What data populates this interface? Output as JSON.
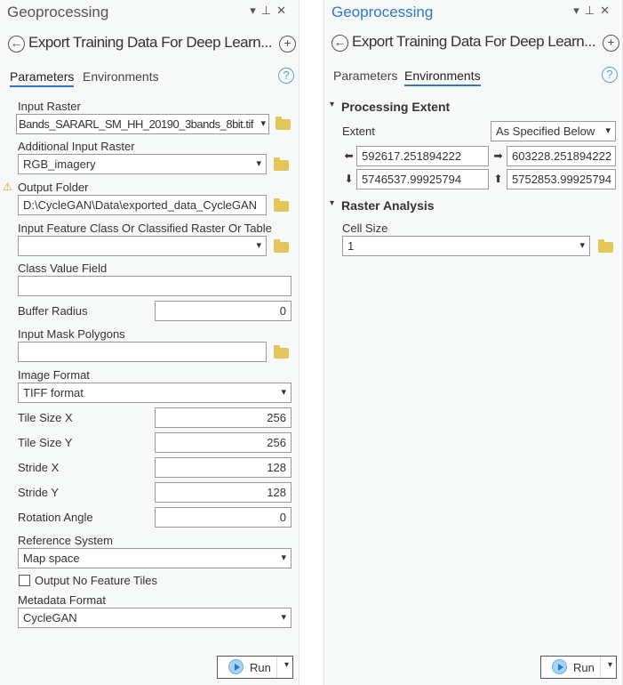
{
  "left": {
    "panel_title": "Geoprocessing",
    "window_controls": [
      "▾",
      "⊥",
      "✕"
    ],
    "tool_title": "Export Training Data For Deep Learn...",
    "tabs": [
      "Parameters",
      "Environments"
    ],
    "active_tab": "Parameters",
    "params": {
      "input_raster": {
        "label": "Input Raster",
        "value": "Bands_SARARL_SM_HH_20190_3bands_8bit.tif"
      },
      "additional_input_raster": {
        "label": "Additional Input Raster",
        "value": "RGB_imagery"
      },
      "output_folder": {
        "label": "Output Folder",
        "value": "D:\\CycleGAN\\Data\\exported_data_CycleGAN",
        "warning": "⚠"
      },
      "input_feature": {
        "label": "Input Feature Class Or Classified Raster Or Table",
        "value": ""
      },
      "class_value_field": {
        "label": "Class Value Field",
        "value": ""
      },
      "buffer_radius": {
        "label": "Buffer Radius",
        "value": "0"
      },
      "input_mask_polygons": {
        "label": "Input Mask Polygons",
        "value": ""
      },
      "image_format": {
        "label": "Image Format",
        "value": "TIFF format"
      },
      "tile_size_x": {
        "label": "Tile Size X",
        "value": "256"
      },
      "tile_size_y": {
        "label": "Tile Size Y",
        "value": "256"
      },
      "stride_x": {
        "label": "Stride X",
        "value": "128"
      },
      "stride_y": {
        "label": "Stride Y",
        "value": "128"
      },
      "rotation_angle": {
        "label": "Rotation Angle",
        "value": "0"
      },
      "reference_system": {
        "label": "Reference System",
        "value": "Map space"
      },
      "output_no_feature_tiles": {
        "label": "Output No Feature Tiles",
        "checked": false
      },
      "metadata_format": {
        "label": "Metadata Format",
        "value": "CycleGAN"
      }
    },
    "run_label": "Run"
  },
  "right": {
    "panel_title": "Geoprocessing",
    "window_controls": [
      "▾",
      "⊥",
      "✕"
    ],
    "tool_title": "Export Training Data For Deep Learn...",
    "tabs": [
      "Parameters",
      "Environments"
    ],
    "active_tab": "Environments",
    "processing_extent": {
      "title": "Processing Extent",
      "extent_label": "Extent",
      "extent_value": "As Specified Below",
      "left": "592617.251894222",
      "right": "603228.251894222",
      "bottom": "5746537.99925794",
      "top": "5752853.99925794"
    },
    "raster_analysis": {
      "title": "Raster Analysis",
      "cell_size_label": "Cell Size",
      "cell_size_value": "1"
    },
    "run_label": "Run"
  },
  "colors": {
    "accent": "#2b79c9",
    "folder": "#e3c55a",
    "warning": "#d79a1e"
  }
}
